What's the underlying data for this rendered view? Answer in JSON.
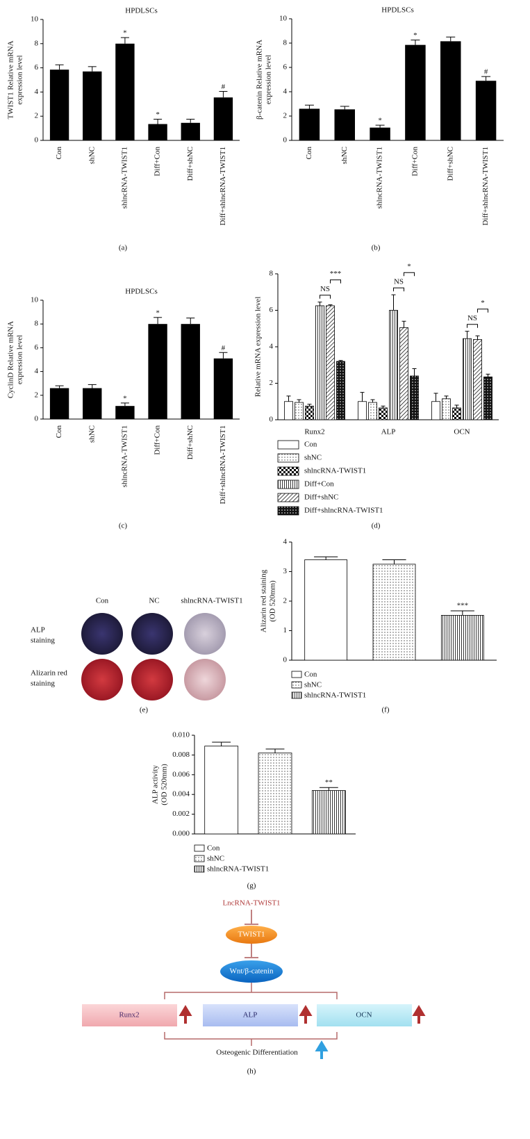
{
  "chart_data": [
    {
      "type": "bar",
      "label": "(a)",
      "title": "HPDLSCs",
      "ylabel": [
        "TWIST1 Relative mRNA",
        "expression level"
      ],
      "categories": [
        "Con",
        "shNC",
        "shlncRNA-TWIST1",
        "Diff+Con",
        "Diff+shNC",
        "Diff+shlncRNA-TWIST1"
      ],
      "values": [
        5.85,
        5.7,
        8.0,
        1.35,
        1.45,
        3.55
      ],
      "errors": [
        0.4,
        0.4,
        0.5,
        0.4,
        0.3,
        0.5
      ],
      "annotations": [
        null,
        null,
        "*",
        "*",
        null,
        "#"
      ],
      "color": "#000000",
      "ylim": [
        0,
        10
      ],
      "yticks": [
        0,
        2,
        4,
        6,
        8,
        10
      ]
    },
    {
      "type": "bar",
      "label": "(b)",
      "title": "HPDLSCs",
      "ylabel": [
        "β-catenin Relative mRNA",
        "expression level"
      ],
      "categories": [
        "Con",
        "shNC",
        "shlncRNA-TWIST1",
        "Diff+Con",
        "Diff+shNC",
        "Diff+shlncRNA-TWIST1"
      ],
      "values": [
        2.6,
        2.55,
        1.05,
        7.85,
        8.15,
        4.9
      ],
      "errors": [
        0.3,
        0.25,
        0.2,
        0.4,
        0.35,
        0.35
      ],
      "annotations": [
        null,
        null,
        "*",
        "*",
        null,
        "#"
      ],
      "color": "#000000",
      "ylim": [
        0,
        10
      ],
      "yticks": [
        0,
        2,
        4,
        6,
        8,
        10
      ]
    },
    {
      "type": "bar",
      "label": "(c)",
      "title": "HPDLSCs",
      "ylabel": [
        "CyclinD Relative mRNA",
        "expression level"
      ],
      "categories": [
        "Con",
        "shNC",
        "shlncRNA-TWIST1",
        "Diff+Con",
        "Diff+shNC",
        "Diff+shlncRNA-TWIST1"
      ],
      "values": [
        2.6,
        2.6,
        1.1,
        8.0,
        8.0,
        5.1
      ],
      "errors": [
        0.2,
        0.3,
        0.25,
        0.55,
        0.5,
        0.5
      ],
      "annotations": [
        null,
        null,
        "*",
        "*",
        null,
        "#"
      ],
      "color": "#000000",
      "ylim": [
        0,
        10
      ],
      "yticks": [
        0,
        2,
        4,
        6,
        8,
        10
      ]
    },
    {
      "type": "bar",
      "label": "(d)",
      "ylabel": [
        "Relative mRNA expression level"
      ],
      "categories": [
        "Runx2",
        "ALP",
        "OCN"
      ],
      "series": [
        {
          "name": "Con",
          "pattern": "none",
          "values": [
            1.0,
            1.0,
            1.0
          ],
          "errors": [
            0.3,
            0.5,
            0.45
          ]
        },
        {
          "name": "shNC",
          "pattern": "dots",
          "values": [
            0.95,
            0.95,
            1.15
          ],
          "errors": [
            0.15,
            0.15,
            0.15
          ]
        },
        {
          "name": "shlncRNA-TWIST1",
          "pattern": "checker",
          "values": [
            0.75,
            0.65,
            0.65
          ],
          "errors": [
            0.1,
            0.1,
            0.15
          ]
        },
        {
          "name": "Diff+Con",
          "pattern": "vertical",
          "values": [
            6.25,
            6.0,
            4.45
          ],
          "errors": [
            0.2,
            0.85,
            0.4
          ]
        },
        {
          "name": "Diff+shNC",
          "pattern": "diagonal",
          "values": [
            6.25,
            5.05,
            4.4
          ],
          "errors": [
            0.05,
            0.35,
            0.2
          ]
        },
        {
          "name": "Diff+shlncRNA-TWIST1",
          "pattern": "diamonds",
          "values": [
            3.2,
            2.4,
            2.35
          ],
          "errors": [
            0.05,
            0.4,
            0.15
          ]
        }
      ],
      "brackets": [
        [
          "NS",
          "***"
        ],
        [
          "NS",
          "*"
        ],
        [
          "NS",
          "*"
        ]
      ],
      "ylim": [
        0,
        8
      ],
      "yticks": [
        0,
        2,
        4,
        6,
        8
      ]
    },
    {
      "type": "bar",
      "label": "(f)",
      "ylabel": [
        "Alizarin red staining",
        "(OD 520mm)"
      ],
      "series": [
        {
          "name": "Con",
          "pattern": "none",
          "values": [
            3.4
          ],
          "errors": [
            0.1
          ]
        },
        {
          "name": "shNC",
          "pattern": "dots",
          "values": [
            3.25
          ],
          "errors": [
            0.15
          ]
        },
        {
          "name": "shlncRNA-TWIST1",
          "pattern": "vertical",
          "values": [
            1.52
          ],
          "errors": [
            0.15
          ]
        }
      ],
      "annotations": [
        null,
        null,
        "***"
      ],
      "ylim": [
        0,
        4
      ],
      "yticks": [
        0,
        1,
        2,
        3,
        4
      ]
    },
    {
      "type": "bar",
      "label": "(g)",
      "ylabel": [
        "ALP activity",
        "(OD 520mm)"
      ],
      "series": [
        {
          "name": "Con",
          "pattern": "none",
          "values": [
            0.0089
          ],
          "errors": [
            0.0004
          ]
        },
        {
          "name": "shNC",
          "pattern": "dots",
          "values": [
            0.0082
          ],
          "errors": [
            0.0004
          ]
        },
        {
          "name": "shlncRNA-TWIST1",
          "pattern": "vertical",
          "values": [
            0.0044
          ],
          "errors": [
            0.0003
          ]
        }
      ],
      "annotations": [
        null,
        null,
        "**"
      ],
      "ylim": [
        0,
        0.01
      ],
      "yticks": [
        {
          "value": 0,
          "label": "0.000"
        },
        {
          "value": 0.002,
          "label": "0.002"
        },
        {
          "value": 0.004,
          "label": "0.004"
        },
        {
          "value": 0.006,
          "label": "0.006"
        },
        {
          "value": 0.008,
          "label": "0.008"
        },
        {
          "value": 0.01,
          "label": "0.010"
        }
      ]
    }
  ],
  "photo_panel": {
    "label": "(e)",
    "columns": [
      "Con",
      "NC",
      "shlncRNA-TWIST1"
    ],
    "rows": [
      [
        "ALP",
        "staining"
      ],
      [
        "Alizarin red",
        "staining"
      ]
    ]
  },
  "diagram": {
    "label": "(h)",
    "input": "LncRNA-TWIST1",
    "nodes": [
      "TWIST1",
      "Wnt/β-catenin"
    ],
    "targets": [
      "Runx2",
      "ALP",
      "OCN"
    ],
    "outcome": "Osteogenic Differentiation"
  }
}
